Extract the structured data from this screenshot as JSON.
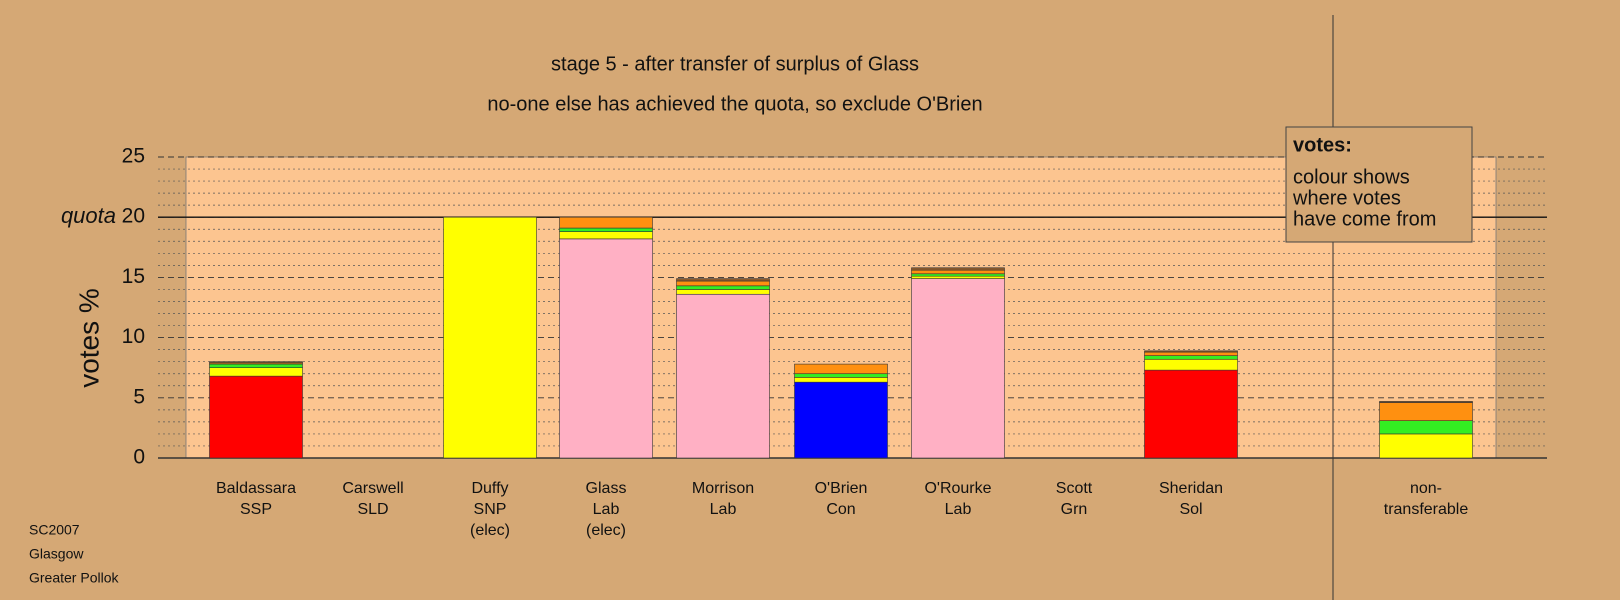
{
  "chart_data": {
    "type": "stacked-bar",
    "title": "stage 5 - after transfer of surplus of Glass",
    "subtitle": "no-one else has achieved the quota, so exclude O'Brien",
    "ylabel": "votes %",
    "quota": {
      "value": 20,
      "label": "quota"
    },
    "categories": [
      [
        "Baldassara",
        "SSP"
      ],
      [
        "Carswell",
        "SLD"
      ],
      [
        "Duffy",
        "SNP",
        "(elec)"
      ],
      [
        "Glass",
        "Lab",
        "(elec)"
      ],
      [
        "Morrison",
        "Lab"
      ],
      [
        "O'Brien",
        "Con"
      ],
      [
        "O'Rourke",
        "Lab"
      ],
      [
        "Scott",
        "Grn"
      ],
      [
        "Sheridan",
        "Sol"
      ],
      [
        "non-",
        "transferable"
      ]
    ],
    "series": [
      {
        "color": "#ff0000",
        "values": [
          6.8,
          0,
          0,
          0,
          0,
          0,
          0,
          0,
          7.3,
          0
        ]
      },
      {
        "color": "#0000ff",
        "values": [
          0,
          0,
          0,
          0,
          0,
          6.3,
          0,
          0,
          0,
          0
        ]
      },
      {
        "color": "#ffb0c4",
        "values": [
          0,
          0,
          0,
          18.2,
          13.6,
          0,
          14.9,
          0,
          0,
          0
        ]
      },
      {
        "color": "#ffff00",
        "values": [
          0.7,
          0,
          20,
          0.6,
          0.4,
          0.4,
          0.2,
          0,
          0.9,
          2.0
        ]
      },
      {
        "color": "#33ee22",
        "values": [
          0.3,
          0,
          0,
          0.3,
          0.3,
          0.3,
          0.2,
          0,
          0.3,
          1.1
        ]
      },
      {
        "color": "#ff9010",
        "values": [
          0.1,
          0,
          0,
          0.9,
          0.4,
          0.8,
          0.3,
          0,
          0.3,
          1.5
        ]
      },
      {
        "color": "#8b5a2b",
        "values": [
          0.1,
          0,
          0,
          0,
          0.2,
          0,
          0.2,
          0,
          0.1,
          0.1
        ]
      }
    ],
    "ylim": [
      0,
      25
    ],
    "yticks": [
      0,
      5,
      10,
      15,
      20,
      25
    ],
    "grid": true,
    "legend": {
      "title": "votes:",
      "lines": [
        "colour shows",
        "where votes",
        "have come from"
      ]
    },
    "footer": [
      "SC2007",
      "Glasgow",
      "Greater Pollok"
    ]
  }
}
